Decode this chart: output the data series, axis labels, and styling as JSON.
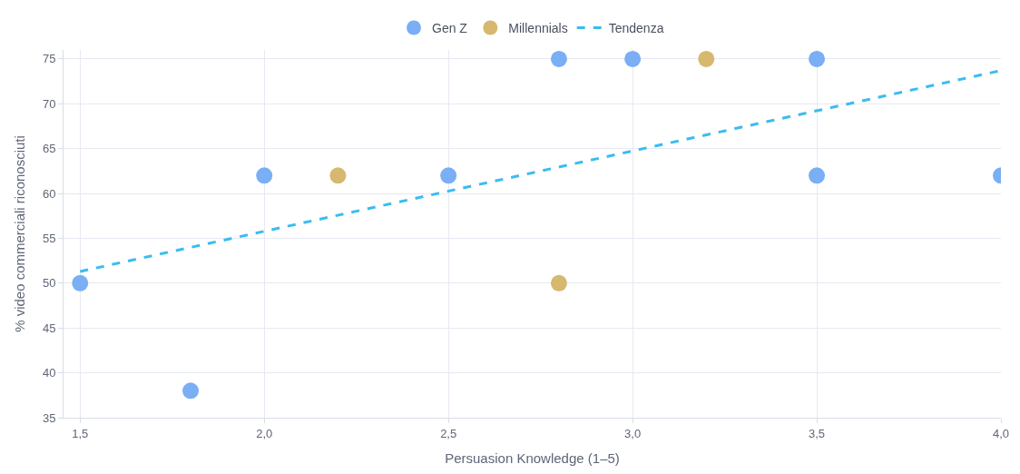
{
  "chart_data": {
    "type": "scatter",
    "xlabel": "Persuasion Knowledge (1–5)",
    "ylabel": "% video commerciali riconosciuti",
    "series": [
      {
        "name": "Gen Z",
        "color": "#7aaef5",
        "x": [
          1.5,
          1.8,
          2.0,
          2.5,
          2.8,
          3.0,
          3.5,
          3.5,
          4.0
        ],
        "values": [
          50,
          38,
          62,
          62,
          75,
          75,
          75,
          62,
          62
        ]
      },
      {
        "name": "Millennials",
        "color": "#d6b86e",
        "x": [
          2.2,
          2.8,
          3.2
        ],
        "values": [
          62,
          50,
          75
        ]
      },
      {
        "name": "Tendenza",
        "type": "line",
        "color": "#3bbcf0",
        "line_style": "dashed",
        "marker": "none",
        "x": [
          1.5,
          4.0
        ],
        "values": [
          51.3,
          73.7
        ]
      }
    ],
    "marker": "circle",
    "xlim": [
      1.455,
      4.0
    ],
    "ylim": [
      35,
      76
    ],
    "xticks": [
      {
        "value": 1.5,
        "label": "1,5"
      },
      {
        "value": 2.0,
        "label": "2,0"
      },
      {
        "value": 2.5,
        "label": "2,5"
      },
      {
        "value": 3.0,
        "label": "3,0"
      },
      {
        "value": 3.5,
        "label": "3,5"
      },
      {
        "value": 4.0,
        "label": "4,0"
      }
    ],
    "yticks": [
      35,
      40,
      45,
      50,
      55,
      60,
      65,
      70,
      75
    ],
    "grid": true,
    "legend": "top"
  }
}
